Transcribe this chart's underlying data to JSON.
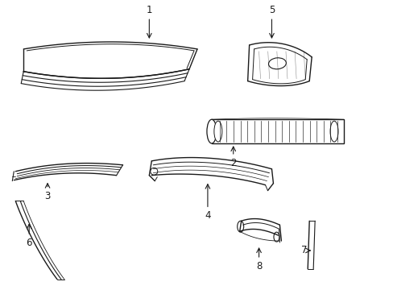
{
  "bg_color": "#ffffff",
  "line_color": "#1a1a1a",
  "lw": 1.0,
  "fig_w": 4.89,
  "fig_h": 3.6,
  "dpi": 100
}
